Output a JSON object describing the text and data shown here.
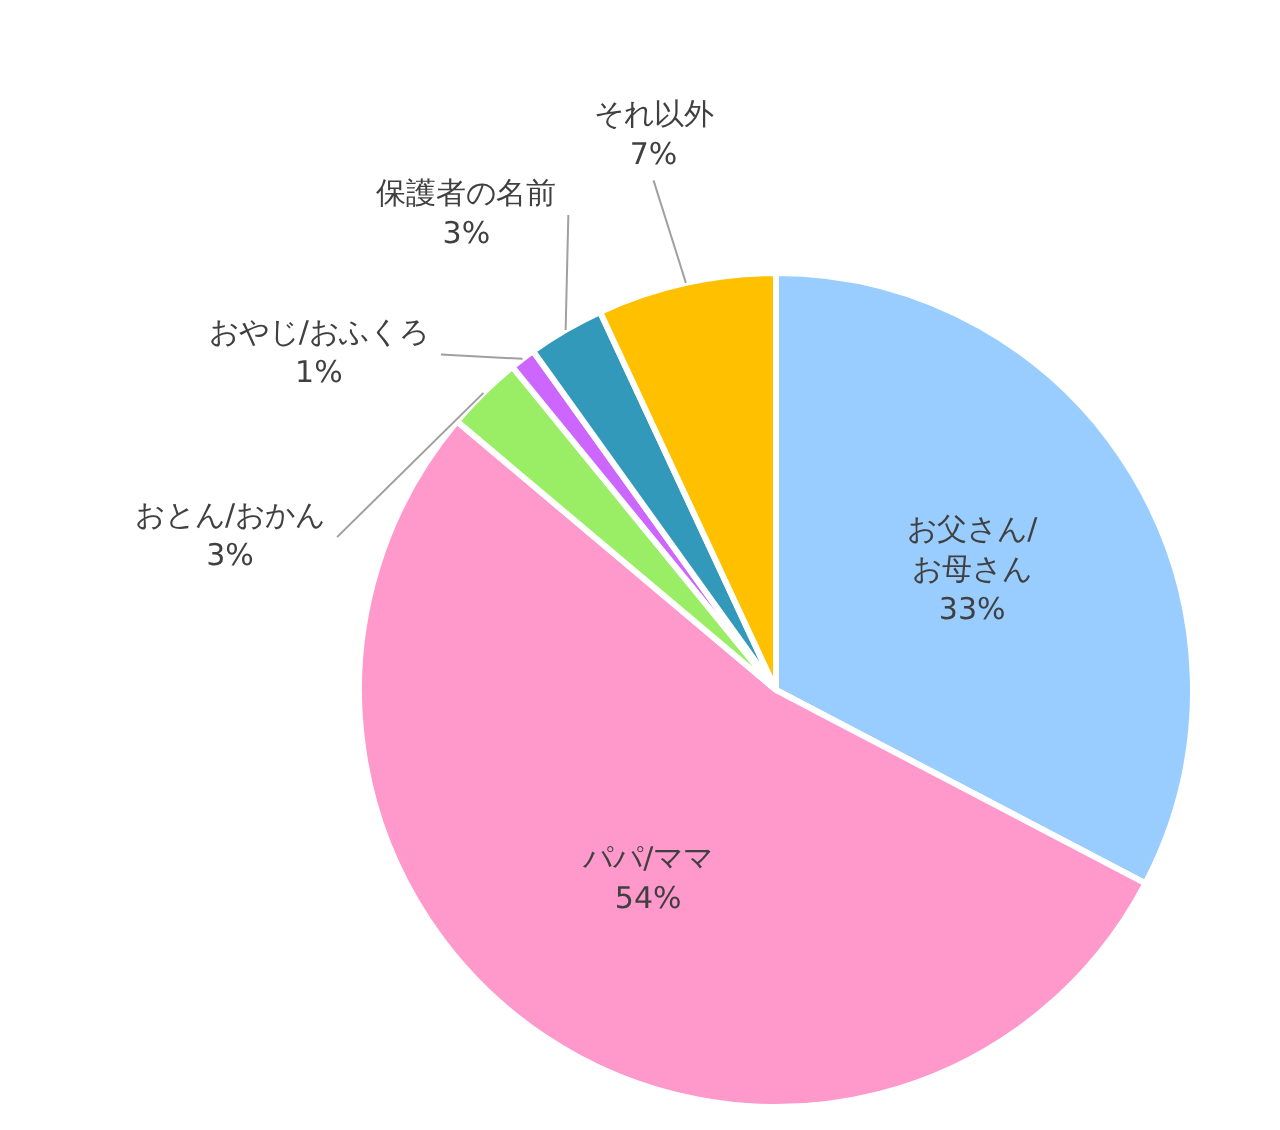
{
  "chart_data": {
    "type": "pie",
    "categories": [
      "お父さん/お母さん",
      "パパ/ママ",
      "おとん/おかん",
      "おやじ/おふくろ",
      "保護者の名前",
      "それ以外"
    ],
    "values": [
      33,
      54,
      3,
      1,
      3,
      7
    ],
    "colors": [
      "#99ccff",
      "#ff99cc",
      "#99ee66",
      "#cc66ff",
      "#3399bb",
      "#ffc000"
    ],
    "value_labels": [
      "33%",
      "54%",
      "3%",
      "1%",
      "3%",
      "7%"
    ],
    "legend": false
  }
}
